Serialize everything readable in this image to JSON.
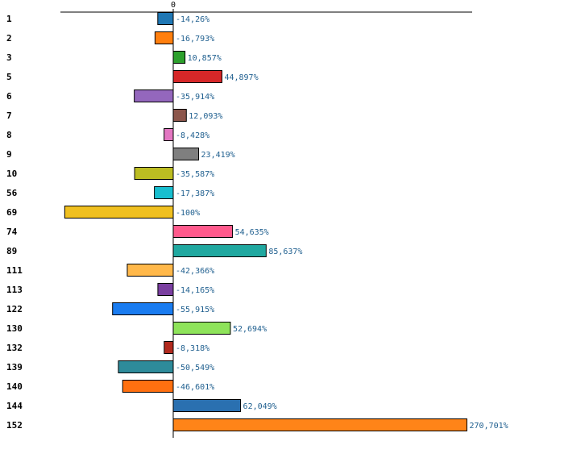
{
  "chart_data": {
    "type": "bar",
    "orientation": "horizontal",
    "title": "",
    "xlabel": "",
    "ylabel": "",
    "grid": false,
    "x_ticks": [
      "0"
    ],
    "xlim": [
      -100,
      270.701
    ],
    "categories": [
      "1",
      "2",
      "3",
      "5",
      "6",
      "7",
      "8",
      "9",
      "10",
      "56",
      "69",
      "74",
      "89",
      "111",
      "113",
      "122",
      "130",
      "132",
      "139",
      "140",
      "144",
      "152"
    ],
    "values": [
      -14.26,
      -16.793,
      10.857,
      44.897,
      -35.914,
      12.093,
      -8.428,
      23.419,
      -35.587,
      -17.387,
      -100,
      54.635,
      85.637,
      -42.366,
      -14.165,
      -55.915,
      52.694,
      -8.318,
      -50.549,
      -46.601,
      62.049,
      270.701
    ],
    "value_labels": [
      "-14,26%",
      "-16,793%",
      "10,857%",
      "44,897%",
      "-35,914%",
      "12,093%",
      "-8,428%",
      "23,419%",
      "-35,587%",
      "-17,387%",
      "-100%",
      "54,635%",
      "85,637%",
      "-42,366%",
      "-14,165%",
      "-55,915%",
      "52,694%",
      "-8,318%",
      "-50,549%",
      "-46,601%",
      "62,049%",
      "270,701%"
    ],
    "colors": [
      "#1f77b4",
      "#ff7f0e",
      "#2ca02c",
      "#d62728",
      "#9467bd",
      "#8c564b",
      "#e377c2",
      "#7f7f7f",
      "#bcbd22",
      "#17becf",
      "#f0c020",
      "#ff5a8c",
      "#20a8a0",
      "#ffb84a",
      "#7a3fa0",
      "#1a7cf0",
      "#8ee35a",
      "#b22a1e",
      "#2e8b9a",
      "#ff7010",
      "#2a70b0",
      "#ff8418"
    ],
    "label_color": "#1f5f8f"
  }
}
